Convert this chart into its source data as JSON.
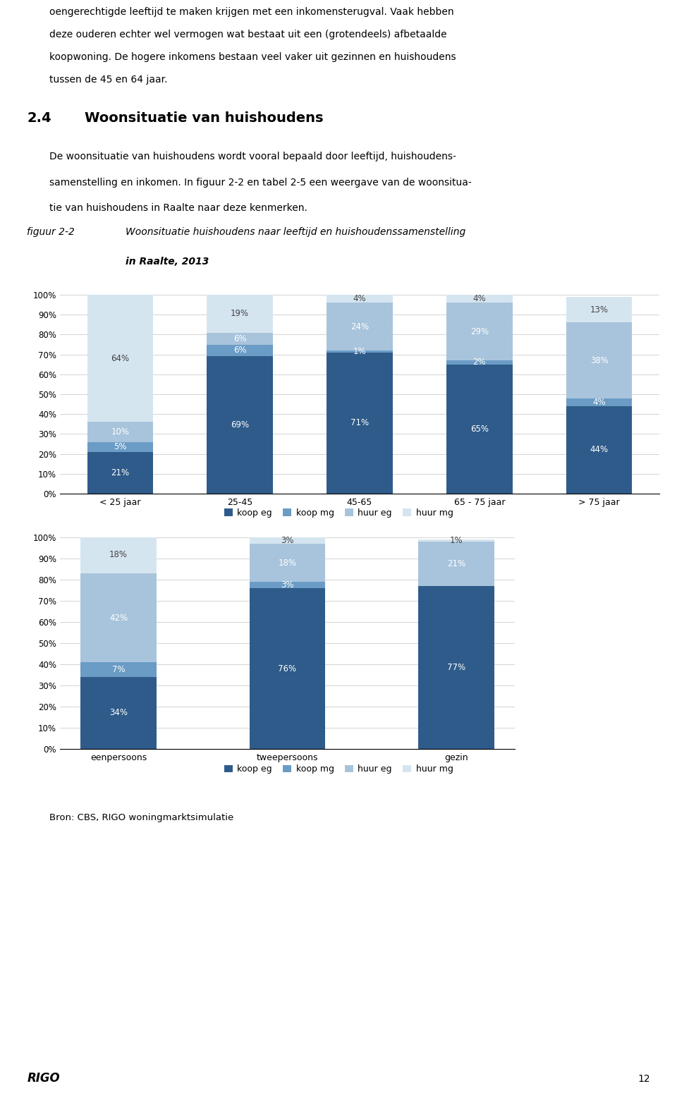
{
  "text_top": [
    "oengerechtigde leeftijd te maken krijgen met een inkomensterugval. Vaak hebben",
    "deze ouderen echter wel vermogen wat bestaat uit een (grotendeels) afbetaalde",
    "koopwoning. De hogere inkomens bestaan veel vaker uit gezinnen en huishoudens",
    "tussen de 45 en 64 jaar."
  ],
  "section_number": "2.4",
  "section_title": "Woonsituatie van huishoudens",
  "section_body": [
    "De woonsituatie van huishoudens wordt vooral bepaald door leeftijd, huishoudens-",
    "samenstelling en inkomen. In figuur 2-2 en tabel 2-5 een weergave van de woonsitua-",
    "tie van huishoudens in Raalte naar deze kenmerken."
  ],
  "fig_label": "figuur 2-2",
  "fig_title_line1": "Woonsituatie huishoudens naar leeftijd en huishoudenssamenstelling",
  "fig_title_line2": "in Raalte, 2013",
  "chart1": {
    "categories": [
      "< 25 jaar",
      "25-45",
      "45-65",
      "65 - 75 jaar",
      "> 75 jaar"
    ],
    "koop_eg": [
      21,
      69,
      71,
      65,
      44
    ],
    "koop_mg": [
      5,
      6,
      1,
      2,
      4
    ],
    "huur_eg": [
      10,
      6,
      24,
      29,
      38
    ],
    "huur_mg": [
      64,
      19,
      4,
      4,
      13
    ]
  },
  "chart2": {
    "categories": [
      "eenpersoons",
      "tweepersoons",
      "gezin"
    ],
    "koop_eg": [
      34,
      76,
      77
    ],
    "koop_mg": [
      7,
      3,
      0
    ],
    "huur_eg": [
      42,
      18,
      21
    ],
    "huur_mg": [
      18,
      3,
      1
    ]
  },
  "colors": {
    "koop_eg": "#2E5B8A",
    "koop_mg": "#6A9CC5",
    "huur_eg": "#A8C4DC",
    "huur_mg": "#D5E5F0"
  },
  "legend_labels": [
    "koop eg",
    "koop mg",
    "huur eg",
    "huur mg"
  ],
  "source": "Bron: CBS, RIGO woningmarktsimulatie",
  "page_number": "12"
}
